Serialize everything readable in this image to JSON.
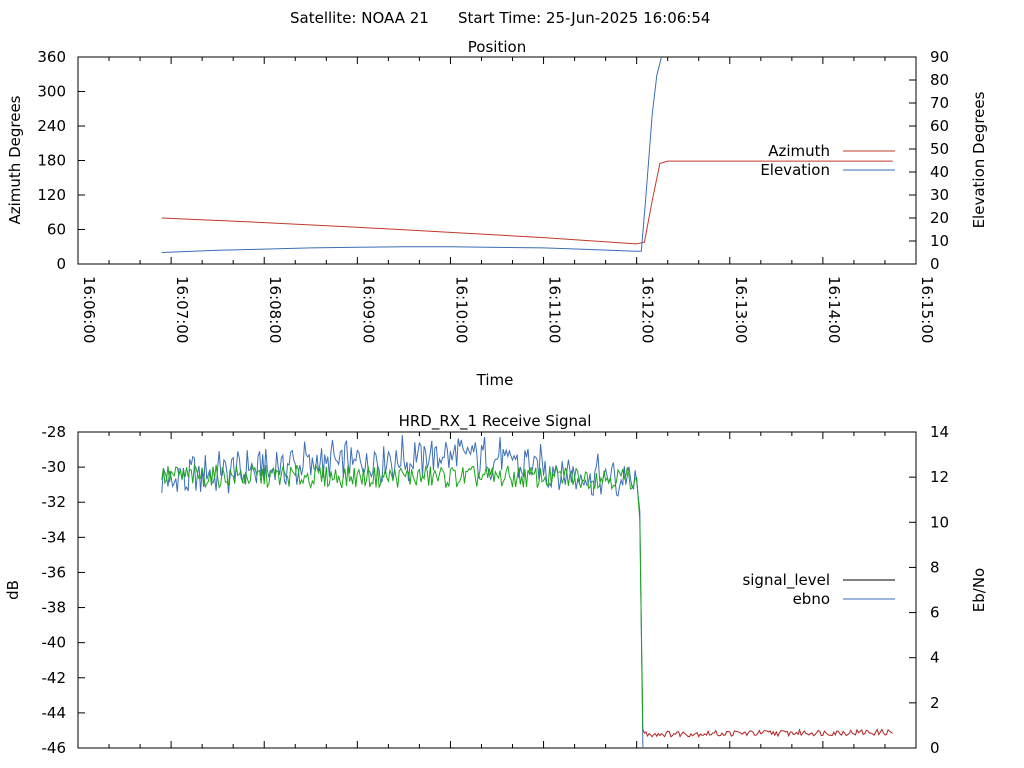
{
  "header": {
    "satellite_label": "Satellite: NOAA 21",
    "start_time_label": "Start Time: 25-Jun-2025 16:06:54"
  },
  "colors": {
    "azimuth": "#c0392b",
    "elevation": "#3b6fb6",
    "signal_level": "#000000",
    "ebno": "#3b6fb6",
    "green_trace": "#1aa51a",
    "red_trace": "#b22222",
    "axis": "#000000"
  },
  "chart_data": [
    {
      "type": "line",
      "title": "Position",
      "xlabel": "Time",
      "ylabel": "Azimuth Degrees",
      "y2label": "Elevation Degrees",
      "xlim": [
        "16:06:00",
        "16:15:00"
      ],
      "x_ticks": [
        "16:06:00",
        "16:07:00",
        "16:08:00",
        "16:09:00",
        "16:10:00",
        "16:11:00",
        "16:12:00",
        "16:13:00",
        "16:14:00",
        "16:15:00"
      ],
      "ylim": [
        0,
        360
      ],
      "y_ticks": [
        "0",
        "60",
        "120",
        "180",
        "240",
        "300",
        "360"
      ],
      "y2lim": [
        0,
        90
      ],
      "y2_ticks": [
        "0",
        "10",
        "20",
        "30",
        "40",
        "50",
        "60",
        "70",
        "80",
        "90"
      ],
      "legend_position": "right",
      "series": [
        {
          "name": "Azimuth",
          "axis": "y",
          "points": [
            [
              "16:06:54",
              80
            ],
            [
              "16:08:00",
              72
            ],
            [
              "16:09:00",
              64
            ],
            [
              "16:10:00",
              55
            ],
            [
              "16:11:00",
              46
            ],
            [
              "16:12:00",
              35
            ],
            [
              "16:12:05",
              38
            ],
            [
              "16:12:10",
              110
            ],
            [
              "16:12:15",
              175
            ],
            [
              "16:12:20",
              179
            ],
            [
              "16:14:45",
              179
            ]
          ]
        },
        {
          "name": "Elevation",
          "axis": "y2",
          "points": [
            [
              "16:06:54",
              5
            ],
            [
              "16:07:30",
              6
            ],
            [
              "16:08:00",
              6.5
            ],
            [
              "16:08:30",
              7
            ],
            [
              "16:09:00",
              7.3
            ],
            [
              "16:09:30",
              7.5
            ],
            [
              "16:10:00",
              7.5
            ],
            [
              "16:10:30",
              7.2
            ],
            [
              "16:11:00",
              7
            ],
            [
              "16:11:30",
              6.3
            ],
            [
              "16:12:00",
              5.5
            ],
            [
              "16:12:03",
              5.5
            ],
            [
              "16:12:06",
              30
            ],
            [
              "16:12:10",
              65
            ],
            [
              "16:12:13",
              82
            ],
            [
              "16:12:16",
              90
            ]
          ]
        }
      ]
    },
    {
      "type": "line",
      "title": "HRD_RX_1 Receive Signal",
      "ylabel": "dB",
      "y2label": "Eb/No",
      "xlim": [
        "16:06:00",
        "16:15:00"
      ],
      "ylim": [
        -46,
        -28
      ],
      "y_ticks": [
        "-28",
        "-30",
        "-32",
        "-34",
        "-36",
        "-38",
        "-40",
        "-42",
        "-44",
        "-46"
      ],
      "y2lim": [
        0,
        14
      ],
      "y2_ticks": [
        "0",
        "2",
        "4",
        "6",
        "8",
        "10",
        "12",
        "14"
      ],
      "legend_position": "right",
      "series": [
        {
          "name": "signal_level",
          "axis": "y",
          "points": [
            [
              "16:06:54",
              -30.5
            ],
            [
              "16:12:00",
              -30.6
            ],
            [
              "16:12:02",
              -33
            ],
            [
              "16:12:04",
              -45
            ],
            [
              "16:12:06",
              -45.2
            ],
            [
              "16:14:45",
              -45.1
            ]
          ]
        },
        {
          "name": "ebno",
          "axis": "y2",
          "points": [
            [
              "16:06:54",
              11.8
            ],
            [
              "16:07:30",
              12.2
            ],
            [
              "16:08:30",
              12.6
            ],
            [
              "16:09:30",
              12.8
            ],
            [
              "16:10:00",
              13.0
            ],
            [
              "16:10:30",
              12.8
            ],
            [
              "16:11:00",
              12.4
            ],
            [
              "16:11:30",
              12.0
            ],
            [
              "16:12:00",
              11.8
            ],
            [
              "16:12:02",
              10.5
            ],
            [
              "16:12:04",
              0
            ]
          ]
        }
      ]
    }
  ]
}
